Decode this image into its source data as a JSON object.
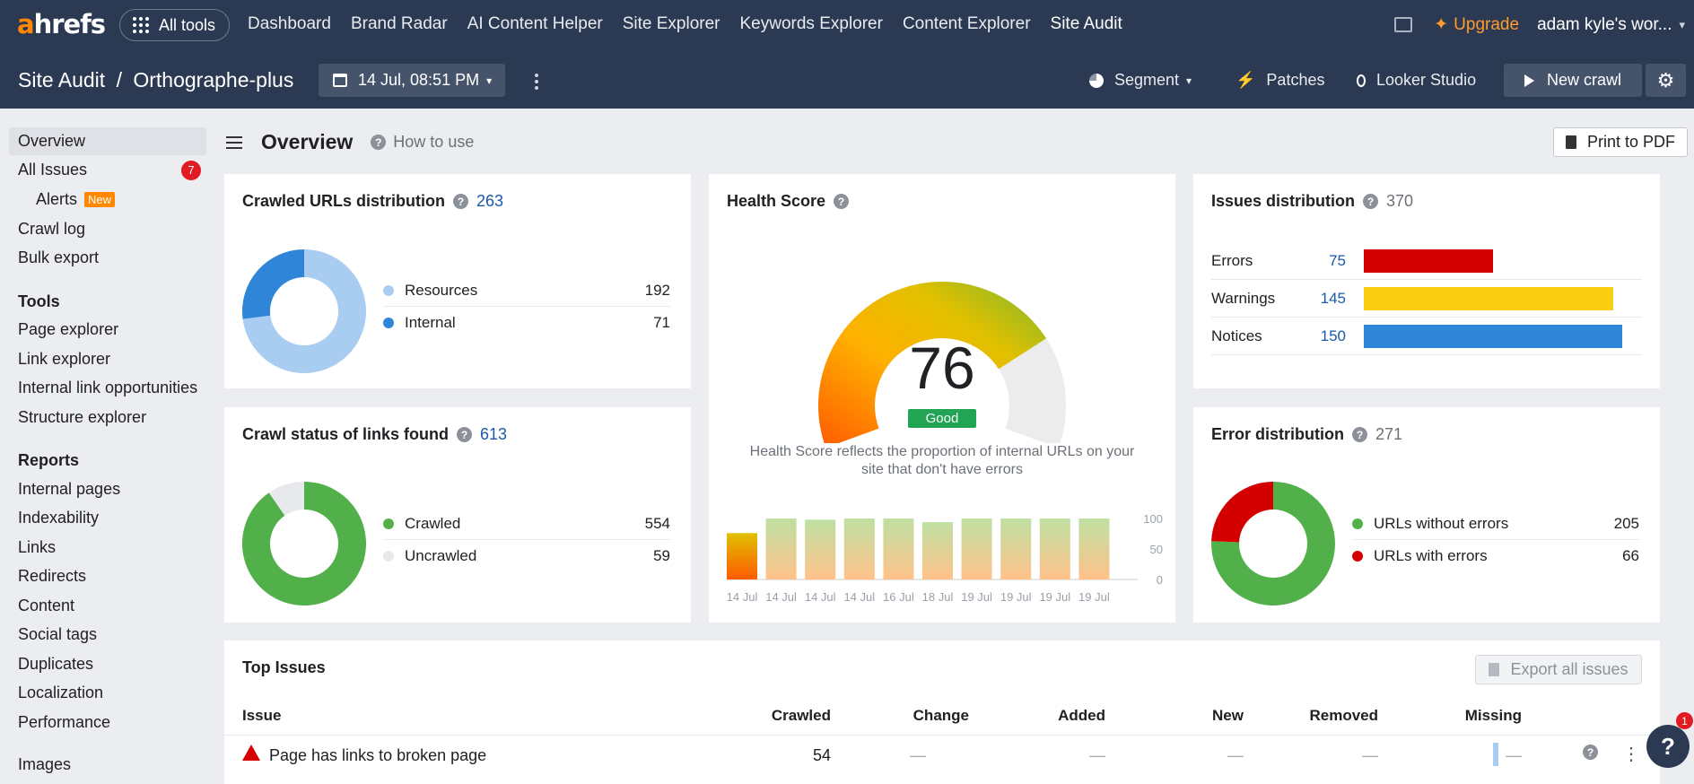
{
  "topnav": {
    "logo_a": "a",
    "logo_rest": "hrefs",
    "all_tools": "All tools",
    "links": [
      "Dashboard",
      "Brand Radar",
      "AI Content Helper",
      "Site Explorer",
      "Keywords Explorer",
      "Content Explorer",
      "Site Audit"
    ],
    "upgrade": "Upgrade",
    "account": "adam kyle's wor..."
  },
  "subbar": {
    "section": "Site Audit",
    "separator": "/",
    "project": "Orthographe-plus",
    "date": "14 Jul, 08:51 PM",
    "segment": "Segment",
    "patches": "Patches",
    "looker": "Looker Studio",
    "new_crawl": "New crawl"
  },
  "sidebar": {
    "overview": "Overview",
    "all_issues": "All Issues",
    "all_issues_count": "7",
    "alerts": "Alerts",
    "alerts_badge": "New",
    "crawl_log": "Crawl log",
    "bulk_export": "Bulk export",
    "tools_head": "Tools",
    "tools": [
      "Page explorer",
      "Link explorer",
      "Internal link opportunities",
      "Structure explorer"
    ],
    "reports_head": "Reports",
    "reports": [
      "Internal pages",
      "Indexability",
      "Links",
      "Redirects",
      "Content",
      "Social tags",
      "Duplicates",
      "Localization",
      "Performance"
    ],
    "images": "Images"
  },
  "main": {
    "title": "Overview",
    "how_to_use": "How to use",
    "print": "Print to PDF"
  },
  "crawled_urls": {
    "title": "Crawled URLs distribution",
    "total": "263",
    "items": [
      {
        "label": "Resources",
        "value": "192",
        "color": "#a9cdf0"
      },
      {
        "label": "Internal",
        "value": "71",
        "color": "#2f86d8"
      }
    ]
  },
  "crawl_status": {
    "title": "Crawl status of links found",
    "total": "613",
    "items": [
      {
        "label": "Crawled",
        "value": "554",
        "color": "#52b04b"
      },
      {
        "label": "Uncrawled",
        "value": "59",
        "color": "#e8e9ec"
      }
    ]
  },
  "health": {
    "title": "Health Score",
    "score": "76",
    "rating": "Good",
    "desc_line1": "Health Score reflects the proportion of internal URLs on your",
    "desc_line2": "site that don't have errors",
    "history": [
      {
        "date": "14 Jul",
        "value": 76
      },
      {
        "date": "14 Jul",
        "value": 100
      },
      {
        "date": "14 Jul",
        "value": 98
      },
      {
        "date": "14 Jul",
        "value": 100
      },
      {
        "date": "16 Jul",
        "value": 100
      },
      {
        "date": "18 Jul",
        "value": 94
      },
      {
        "date": "19 Jul",
        "value": 100
      },
      {
        "date": "19 Jul",
        "value": 100
      },
      {
        "date": "19 Jul",
        "value": 100
      },
      {
        "date": "19 Jul",
        "value": 100
      }
    ],
    "y_ticks": [
      "100",
      "50",
      "0"
    ]
  },
  "issues_dist": {
    "title": "Issues distribution",
    "total": "370",
    "rows": [
      {
        "label": "Errors",
        "value": "75",
        "color": "#d40000",
        "fraction": 0.5
      },
      {
        "label": "Warnings",
        "value": "145",
        "color": "#fbcd13",
        "fraction": 0.967
      },
      {
        "label": "Notices",
        "value": "150",
        "color": "#2f86d8",
        "fraction": 1.0
      }
    ]
  },
  "error_dist": {
    "title": "Error distribution",
    "total": "271",
    "items": [
      {
        "label": "URLs without errors",
        "value": "205",
        "color": "#52b04b"
      },
      {
        "label": "URLs with errors",
        "value": "66",
        "color": "#d40000"
      }
    ]
  },
  "top_issues": {
    "title": "Top Issues",
    "export": "Export all issues",
    "columns": [
      "Issue",
      "Crawled",
      "Change",
      "Added",
      "New",
      "Removed",
      "Missing"
    ],
    "rows": [
      {
        "issue": "Page has links to broken page",
        "crawled": "54",
        "change": "—",
        "added": "—",
        "new": "—",
        "removed": "—",
        "missing": "—"
      }
    ]
  },
  "help": {
    "label": "?",
    "badge": "1"
  }
}
